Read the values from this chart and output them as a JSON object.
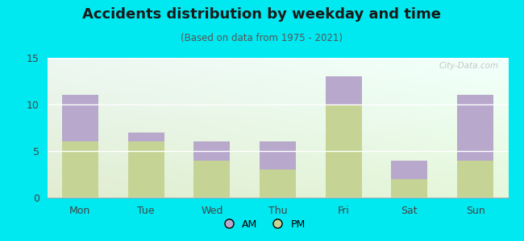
{
  "title": "Accidents distribution by weekday and time",
  "subtitle": "(Based on data from 1975 - 2021)",
  "categories": [
    "Mon",
    "Tue",
    "Wed",
    "Thu",
    "Fri",
    "Sat",
    "Sun"
  ],
  "pm_values": [
    6,
    6,
    4,
    3,
    10,
    2,
    4
  ],
  "am_values": [
    5,
    1,
    2,
    3,
    3,
    2,
    7
  ],
  "am_color": "#b8a8cc",
  "pm_color": "#c5d494",
  "background_color": "#00e8f0",
  "ylim": [
    0,
    15
  ],
  "yticks": [
    0,
    5,
    10,
    15
  ],
  "bar_width": 0.55,
  "watermark": "City-Data.com",
  "legend_am": "AM",
  "legend_pm": "PM",
  "title_fontsize": 13,
  "subtitle_fontsize": 8.5,
  "tick_fontsize": 9
}
